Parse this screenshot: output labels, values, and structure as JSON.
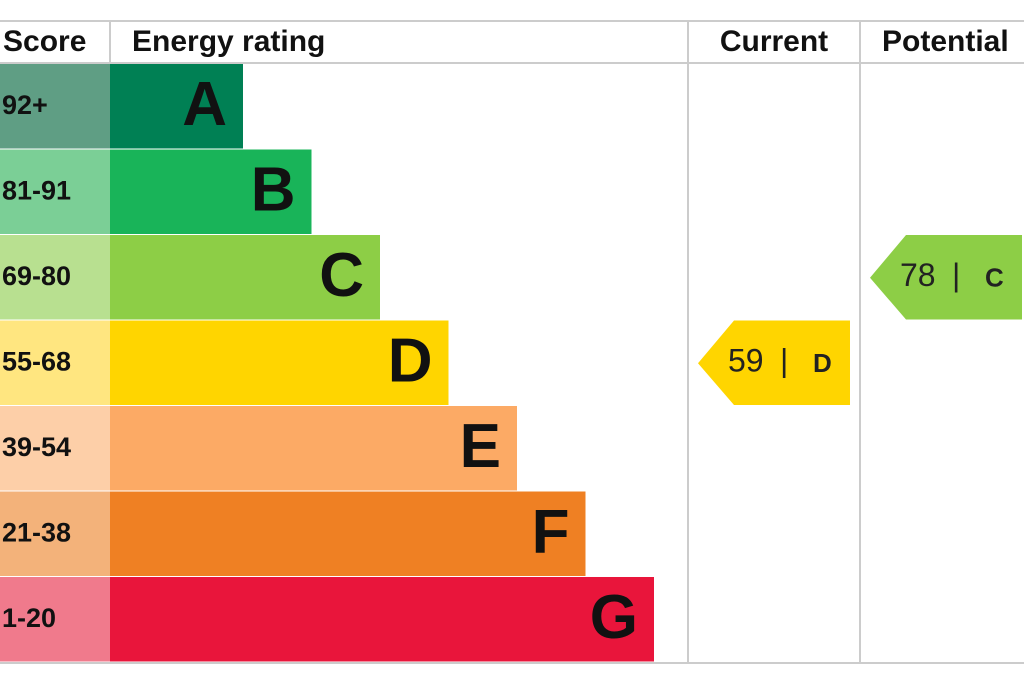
{
  "headers": {
    "score": "Score",
    "rating": "Energy rating",
    "current": "Current",
    "potential": "Potential"
  },
  "bands": [
    {
      "score": "92+",
      "letter": "A"
    },
    {
      "score": "81-91",
      "letter": "B"
    },
    {
      "score": "69-80",
      "letter": "C"
    },
    {
      "score": "55-68",
      "letter": "D"
    },
    {
      "score": "39-54",
      "letter": "E"
    },
    {
      "score": "21-38",
      "letter": "F"
    },
    {
      "score": "1-20",
      "letter": "G"
    }
  ],
  "current": {
    "value": 59,
    "separator": "|",
    "band": "D"
  },
  "potential": {
    "value": 78,
    "separator": "|",
    "band": "C"
  }
}
